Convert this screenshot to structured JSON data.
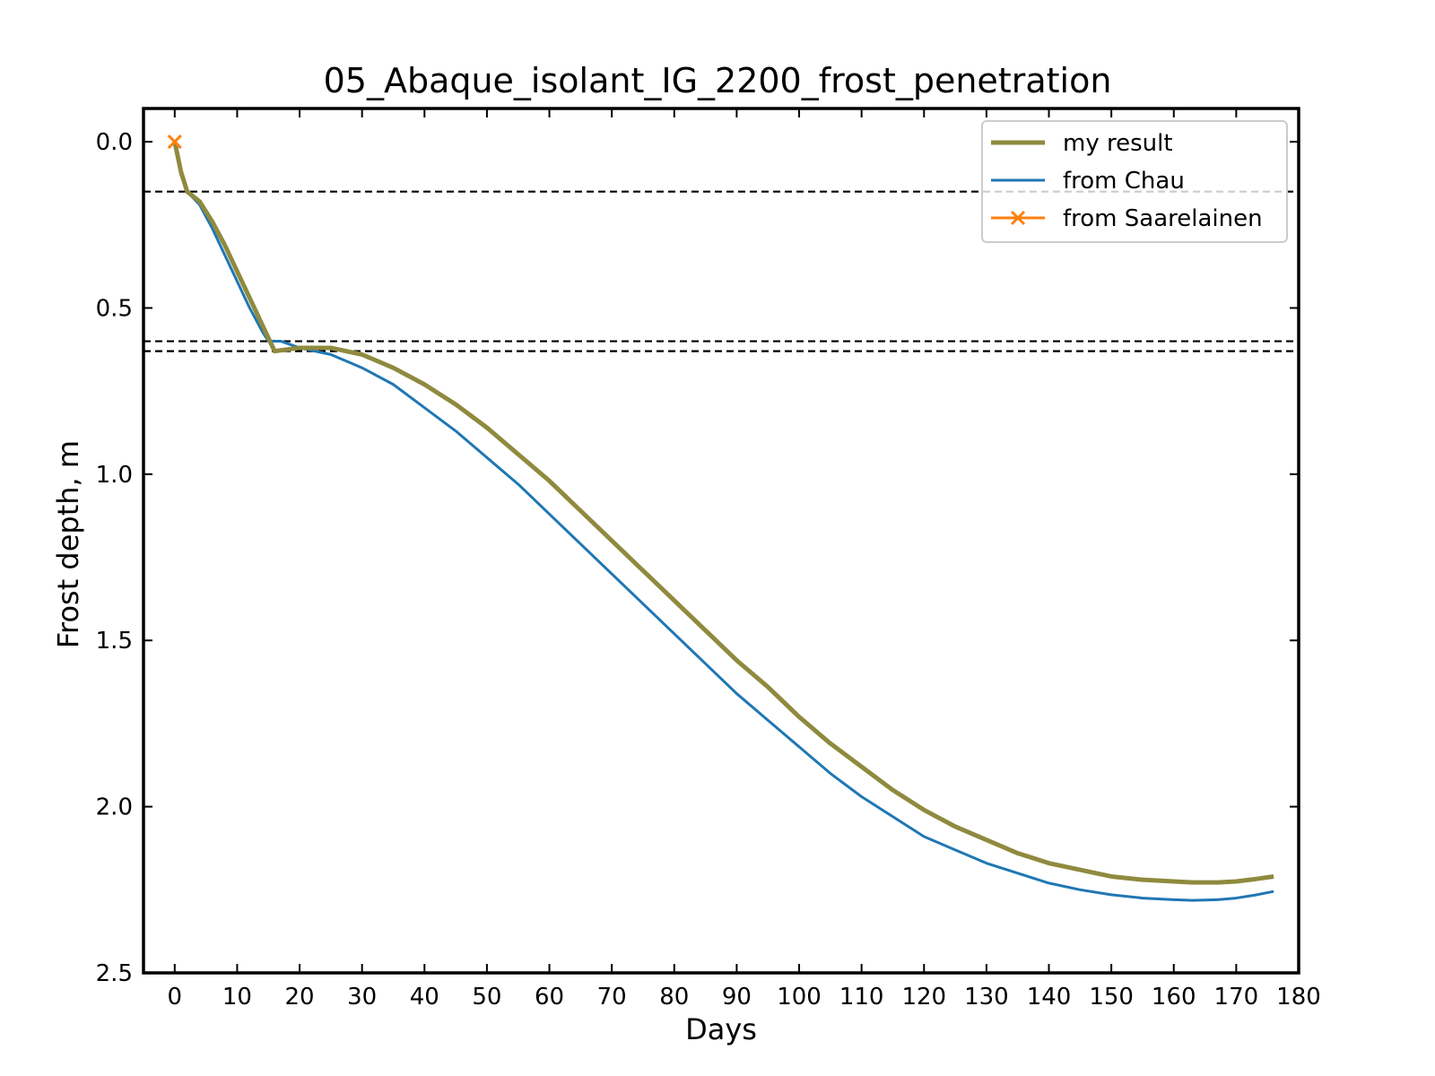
{
  "chart_data": {
    "type": "line",
    "title": "05_Abaque_isolant_IG_2200_frost_penetration",
    "xlabel": "Days",
    "ylabel": "Frost depth, m",
    "xlim": [
      -5,
      180
    ],
    "ylim": [
      2.5,
      -0.1
    ],
    "y_inverted": true,
    "grid": false,
    "legend_position": "top-right",
    "xticks": [
      0,
      10,
      20,
      30,
      40,
      50,
      60,
      70,
      80,
      90,
      100,
      110,
      120,
      130,
      140,
      150,
      160,
      170,
      180
    ],
    "xtick_labels": [
      "0",
      "10",
      "20",
      "30",
      "40",
      "50",
      "60",
      "70",
      "80",
      "90",
      "100",
      "110",
      "120",
      "130",
      "140",
      "150",
      "160",
      "170",
      "180"
    ],
    "yticks": [
      0.0,
      0.5,
      1.0,
      1.5,
      2.0,
      2.5
    ],
    "ytick_labels": [
      "0.0",
      "0.5",
      "1.0",
      "1.5",
      "2.0",
      "2.5"
    ],
    "reference_lines": [
      0.15,
      0.6,
      0.63
    ],
    "series": [
      {
        "name": "my result",
        "color": "#8f8a3e",
        "marker": "none",
        "x": [
          0,
          1,
          2,
          4,
          6,
          8,
          10,
          12,
          14,
          16,
          20,
          25,
          30,
          35,
          40,
          45,
          50,
          55,
          60,
          65,
          70,
          75,
          80,
          85,
          90,
          95,
          100,
          105,
          110,
          115,
          120,
          125,
          130,
          135,
          140,
          145,
          150,
          155,
          160,
          163,
          167,
          170,
          173,
          176
        ],
        "y": [
          0.0,
          0.09,
          0.15,
          0.18,
          0.24,
          0.31,
          0.39,
          0.47,
          0.55,
          0.63,
          0.62,
          0.62,
          0.64,
          0.68,
          0.73,
          0.79,
          0.86,
          0.94,
          1.02,
          1.11,
          1.2,
          1.29,
          1.38,
          1.47,
          1.56,
          1.64,
          1.73,
          1.81,
          1.88,
          1.95,
          2.01,
          2.06,
          2.1,
          2.14,
          2.17,
          2.19,
          2.21,
          2.22,
          2.225,
          2.228,
          2.228,
          2.225,
          2.218,
          2.21
        ]
      },
      {
        "name": "from Chau",
        "color": "#1f77b4",
        "marker": "none",
        "x": [
          0,
          1,
          2,
          4,
          6,
          8,
          10,
          12,
          14,
          15,
          17,
          20,
          25,
          30,
          35,
          40,
          45,
          50,
          55,
          60,
          65,
          70,
          75,
          80,
          85,
          90,
          95,
          100,
          105,
          110,
          115,
          120,
          125,
          130,
          135,
          140,
          145,
          150,
          155,
          160,
          163,
          167,
          170,
          173,
          176
        ],
        "y": [
          0.0,
          0.1,
          0.15,
          0.19,
          0.26,
          0.34,
          0.42,
          0.5,
          0.57,
          0.6,
          0.6,
          0.62,
          0.64,
          0.68,
          0.73,
          0.8,
          0.87,
          0.95,
          1.03,
          1.12,
          1.21,
          1.3,
          1.39,
          1.48,
          1.57,
          1.66,
          1.74,
          1.82,
          1.9,
          1.97,
          2.03,
          2.09,
          2.13,
          2.17,
          2.2,
          2.23,
          2.25,
          2.265,
          2.275,
          2.28,
          2.282,
          2.28,
          2.275,
          2.266,
          2.255
        ]
      },
      {
        "name": "from Saarelainen",
        "color": "#ff7f0e",
        "marker": "x",
        "x": [
          0
        ],
        "y": [
          0.0
        ]
      }
    ]
  }
}
